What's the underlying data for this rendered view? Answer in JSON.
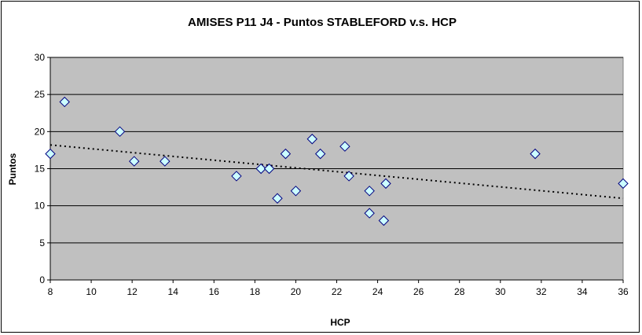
{
  "chart_data": {
    "type": "scatter",
    "title": "AMISES P11 J4 - Puntos STABLEFORD v.s. HCP",
    "xlabel": "HCP",
    "ylabel": "Puntos",
    "xlim": [
      8,
      36
    ],
    "ylim": [
      0,
      30
    ],
    "x_ticks": [
      8,
      10,
      12,
      14,
      16,
      18,
      20,
      22,
      24,
      26,
      28,
      30,
      32,
      34,
      36
    ],
    "y_ticks": [
      0,
      5,
      10,
      15,
      20,
      25,
      30
    ],
    "grid": "horizontal",
    "plot_background": "#c0c0c0",
    "marker": {
      "shape": "diamond",
      "fill": "#ccffff",
      "stroke": "#000080"
    },
    "points": [
      {
        "x": 8.0,
        "y": 17
      },
      {
        "x": 8.7,
        "y": 24
      },
      {
        "x": 11.4,
        "y": 20
      },
      {
        "x": 12.1,
        "y": 16
      },
      {
        "x": 13.6,
        "y": 16
      },
      {
        "x": 17.1,
        "y": 14
      },
      {
        "x": 18.3,
        "y": 15
      },
      {
        "x": 18.7,
        "y": 15
      },
      {
        "x": 19.1,
        "y": 11
      },
      {
        "x": 19.5,
        "y": 17
      },
      {
        "x": 20.0,
        "y": 12
      },
      {
        "x": 20.8,
        "y": 19
      },
      {
        "x": 21.2,
        "y": 17
      },
      {
        "x": 22.4,
        "y": 18
      },
      {
        "x": 22.6,
        "y": 14
      },
      {
        "x": 23.6,
        "y": 12
      },
      {
        "x": 23.6,
        "y": 9
      },
      {
        "x": 24.3,
        "y": 8
      },
      {
        "x": 24.4,
        "y": 13
      },
      {
        "x": 31.7,
        "y": 17
      },
      {
        "x": 36.0,
        "y": 13
      }
    ],
    "trendline": {
      "type": "linear",
      "style": "dotted",
      "color": "#000000",
      "start": [
        8,
        18.2
      ],
      "end": [
        36,
        11.0
      ]
    }
  }
}
